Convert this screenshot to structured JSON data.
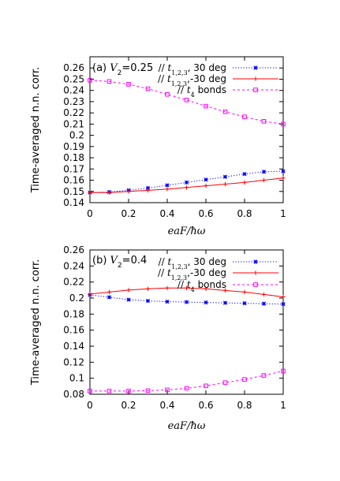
{
  "chart_data": [
    {
      "type": "line",
      "panel_label": "(a)",
      "param_symbol": "V",
      "param_sub": "2",
      "param_value": "=0.25",
      "xlabel_main": "eaF/",
      "xlabel_hbar": "ħ",
      "xlabel_omega": "ω",
      "ylabel": "Time-averaged n.n. corr.",
      "xlim": [
        0,
        1
      ],
      "ylim": [
        0.14,
        0.27
      ],
      "xticks": [
        "0",
        "0.2",
        "0.4",
        "0.6",
        "0.8",
        "1"
      ],
      "yticks": [
        "0.14",
        "0.15",
        "0.16",
        "0.17",
        "0.18",
        "0.19",
        "0.2",
        "0.21",
        "0.22",
        "0.23",
        "0.24",
        "0.25",
        "0.26"
      ],
      "ytick_values": [
        0.14,
        0.15,
        0.16,
        0.17,
        0.18,
        0.19,
        0.2,
        0.21,
        0.22,
        0.23,
        0.24,
        0.25,
        0.26
      ],
      "legend_position": "top-right",
      "series": [
        {
          "label_prefix": "// ",
          "label_var": "t",
          "label_sub": "1,2,3",
          "label_suffix": ", 30 deg",
          "color": "#0000ff",
          "style": "dotted",
          "marker": "asterisk",
          "x": [
            0,
            0.1,
            0.2,
            0.3,
            0.4,
            0.5,
            0.6,
            0.7,
            0.8,
            0.9,
            1.0
          ],
          "values": [
            0.149,
            0.1495,
            0.151,
            0.153,
            0.1555,
            0.158,
            0.1605,
            0.163,
            0.1655,
            0.1675,
            0.168
          ]
        },
        {
          "label_prefix": "// ",
          "label_var": "t",
          "label_sub": "1,2,3",
          "label_suffix": ",-30 deg",
          "color": "#ff0000",
          "style": "solid",
          "marker": "plus",
          "x": [
            0,
            0.1,
            0.2,
            0.3,
            0.4,
            0.5,
            0.6,
            0.7,
            0.8,
            0.9,
            1.0
          ],
          "values": [
            0.149,
            0.149,
            0.15,
            0.151,
            0.152,
            0.1535,
            0.155,
            0.1565,
            0.158,
            0.16,
            0.162
          ]
        },
        {
          "label_prefix": "// ",
          "label_var": "t",
          "label_sub": "4",
          "label_suffix": " bonds",
          "color": "#ff00ff",
          "style": "dashed",
          "marker": "open-square",
          "x": [
            0,
            0.1,
            0.2,
            0.3,
            0.4,
            0.5,
            0.6,
            0.7,
            0.8,
            0.9,
            1.0
          ],
          "values": [
            0.249,
            0.248,
            0.2455,
            0.2415,
            0.2365,
            0.2315,
            0.226,
            0.221,
            0.2165,
            0.2125,
            0.21
          ]
        }
      ]
    },
    {
      "type": "line",
      "panel_label": "(b)",
      "param_symbol": "V",
      "param_sub": "2",
      "param_value": "=0.4",
      "xlabel_main": "eaF/",
      "xlabel_hbar": "ħ",
      "xlabel_omega": "ω",
      "ylabel": "Time-averaged n.n. corr.",
      "xlim": [
        0,
        1
      ],
      "ylim": [
        0.08,
        0.26
      ],
      "xticks": [
        "0",
        "0.2",
        "0.4",
        "0.6",
        "0.8",
        "1"
      ],
      "yticks": [
        "0.08",
        "0.1",
        "0.12",
        "0.14",
        "0.16",
        "0.18",
        "0.2",
        "0.22",
        "0.24",
        "0.26"
      ],
      "ytick_values": [
        0.08,
        0.1,
        0.12,
        0.14,
        0.16,
        0.18,
        0.2,
        0.22,
        0.24,
        0.26
      ],
      "legend_position": "top-right",
      "series": [
        {
          "label_prefix": "// ",
          "label_var": "t",
          "label_sub": "1,2,3",
          "label_suffix": ", 30 deg",
          "color": "#0000ff",
          "style": "dotted",
          "marker": "asterisk",
          "x": [
            0,
            0.1,
            0.2,
            0.3,
            0.4,
            0.5,
            0.6,
            0.7,
            0.8,
            0.9,
            1.0
          ],
          "values": [
            0.204,
            0.201,
            0.198,
            0.1965,
            0.1955,
            0.195,
            0.1945,
            0.194,
            0.1935,
            0.193,
            0.1925
          ]
        },
        {
          "label_prefix": "// ",
          "label_var": "t",
          "label_sub": "1,2,3",
          "label_suffix": ",-30 deg",
          "color": "#ff0000",
          "style": "solid",
          "marker": "plus",
          "x": [
            0,
            0.1,
            0.2,
            0.3,
            0.4,
            0.5,
            0.6,
            0.7,
            0.8,
            0.9,
            1.0
          ],
          "values": [
            0.205,
            0.2075,
            0.21,
            0.2115,
            0.2125,
            0.2125,
            0.2115,
            0.2095,
            0.2075,
            0.2045,
            0.2015
          ]
        },
        {
          "label_prefix": "// ",
          "label_var": "t",
          "label_sub": "4",
          "label_suffix": " bonds",
          "color": "#ff00ff",
          "style": "dashed",
          "marker": "open-square",
          "x": [
            0,
            0.1,
            0.2,
            0.3,
            0.4,
            0.5,
            0.6,
            0.7,
            0.8,
            0.9,
            1.0
          ],
          "values": [
            0.084,
            0.084,
            0.084,
            0.0845,
            0.0855,
            0.0875,
            0.0905,
            0.0945,
            0.0985,
            0.1035,
            0.109
          ]
        }
      ]
    }
  ]
}
